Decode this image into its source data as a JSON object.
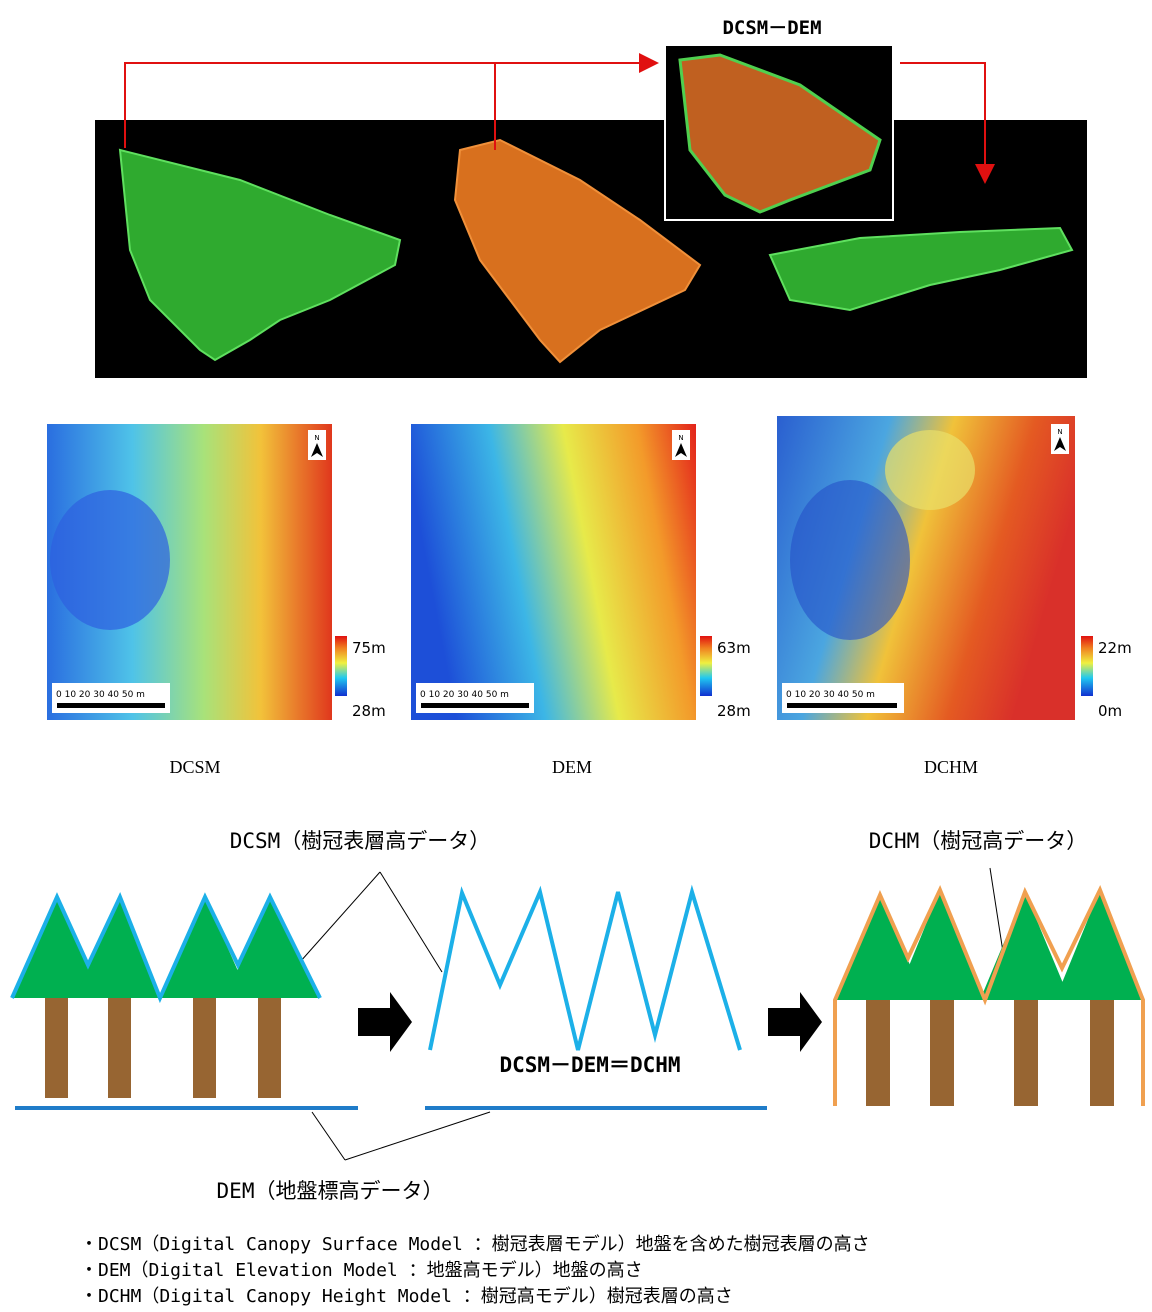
{
  "process": {
    "label": "DCSM－DEM"
  },
  "maps": [
    {
      "caption": "DCSM",
      "max": "75m",
      "min": "28m",
      "scale": "0  10  20  30  40  50 m",
      "north": "N"
    },
    {
      "caption": "DEM",
      "max": "63m",
      "min": "28m",
      "scale": "0  10  20  30  40  50 m",
      "north": "N"
    },
    {
      "caption": "DCHM",
      "max": "22m",
      "min": "0m",
      "scale": "0  10  20  30  40  50 m",
      "north": "N"
    }
  ],
  "diagram": {
    "dcsm_label": "DCSM（樹冠表層高データ）",
    "dchm_label": "DCHM（樹冠高データ）",
    "dem_label": "DEM（地盤標高データ）",
    "equation": "DCSM－DEM＝DCHM"
  },
  "notes": [
    "・DCSM（Digital Canopy Surface Model ：樹冠表層モデル）地盤を含めた樹冠表層の高さ",
    "・DEM（Digital Elevation Model ：地盤高モデル）地盤の高さ",
    "・DCHM（Digital Canopy Height Model ：樹冠高モデル）樹冠表層の高さ"
  ]
}
